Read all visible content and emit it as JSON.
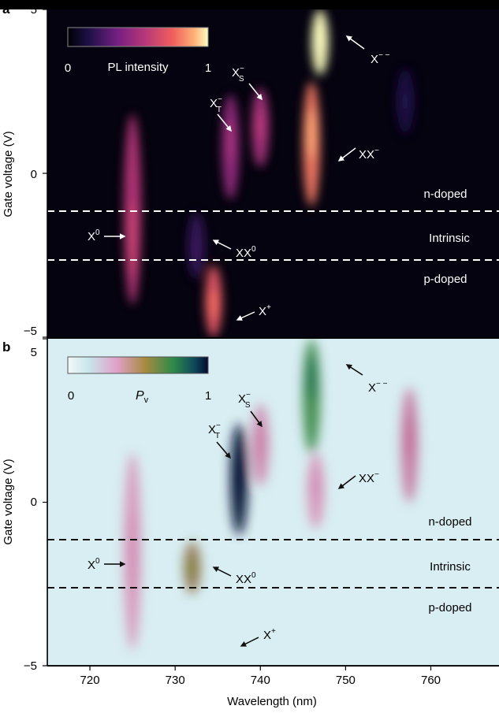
{
  "chart_data": [
    {
      "type": "heatmap",
      "panel_label": "a",
      "ylabel": "Gate voltage (V)",
      "xlabel": "",
      "xlim": [
        715,
        768
      ],
      "ylim": [
        -5,
        5
      ],
      "yticks": [
        "5",
        "0",
        "−5"
      ],
      "colorbar": {
        "label": "PL intensity",
        "min": "0",
        "max": "1",
        "colormap": "magma"
      },
      "regions": [
        {
          "name": "n-doped",
          "boundary_voltage": -1.15
        },
        {
          "name": "Intrinsic"
        },
        {
          "name": "p-doped",
          "boundary_voltage": -2.65
        }
      ],
      "features": [
        {
          "label": "X⁰",
          "wavelength": 725.0,
          "voltage_center": -2.0,
          "voltage_range": [
            -4.0,
            1.8
          ],
          "intensity": 0.55
        },
        {
          "label": "XX⁰",
          "wavelength": 732.5,
          "voltage_center": -2.3,
          "voltage_range": [
            -3.2,
            -1.2
          ],
          "intensity": 0.2
        },
        {
          "label": "X⁺",
          "wavelength": 734.5,
          "voltage_center": -4.0,
          "voltage_range": [
            -5.0,
            -2.8
          ],
          "intensity": 0.7
        },
        {
          "label": "X⁻T",
          "wavelength": 736.5,
          "voltage_center": 1.0,
          "voltage_range": [
            -0.8,
            2.4
          ],
          "intensity": 0.45
        },
        {
          "label": "X⁻S",
          "wavelength": 740.0,
          "voltage_center": 1.5,
          "voltage_range": [
            0.2,
            2.6
          ],
          "intensity": 0.5
        },
        {
          "label": "XX⁻",
          "wavelength": 746.0,
          "voltage_center": 1.2,
          "voltage_range": [
            -1.0,
            2.8
          ],
          "intensity": 0.8
        },
        {
          "label": "X⁻⁻",
          "wavelength": 747.0,
          "voltage_center": 4.2,
          "voltage_range": [
            3.0,
            5.0
          ],
          "intensity": 1.0
        },
        {
          "label": "",
          "wavelength": 757.0,
          "voltage_center": 2.2,
          "voltage_range": [
            1.2,
            3.2
          ],
          "intensity": 0.15
        }
      ],
      "annotations": [
        "X⁻⁻",
        "X⁻S",
        "X⁻T",
        "XX⁻",
        "X⁰",
        "XX⁰",
        "X⁺",
        "n-doped",
        "Intrinsic",
        "p-doped"
      ]
    },
    {
      "type": "heatmap",
      "panel_label": "b",
      "ylabel": "Gate voltage (V)",
      "xlabel": "Wavelength (nm)",
      "xlim": [
        715,
        768
      ],
      "ylim": [
        -5,
        5
      ],
      "xticks": [
        "720",
        "730",
        "740",
        "750",
        "760"
      ],
      "yticks": [
        "5",
        "0",
        "−5"
      ],
      "colorbar": {
        "label": "P",
        "label_subscript": "v",
        "min": "0",
        "max": "1"
      },
      "regions": [
        {
          "name": "n-doped",
          "boundary_voltage": -1.15
        },
        {
          "name": "Intrinsic"
        },
        {
          "name": "p-doped",
          "boundary_voltage": -2.65
        }
      ],
      "features": [
        {
          "label": "X⁰",
          "wavelength": 725.0,
          "voltage_center": -1.5,
          "voltage_range": [
            -4.5,
            1.5
          ],
          "polarization": 0.3
        },
        {
          "label": "XX⁰",
          "wavelength": 732.0,
          "voltage_center": -2.0,
          "voltage_range": [
            -2.8,
            -1.2
          ],
          "polarization": 0.55
        },
        {
          "label": "X⁻T",
          "wavelength": 737.5,
          "voltage_center": 0.8,
          "voltage_range": [
            -1.0,
            2.4
          ],
          "polarization": 1.0
        },
        {
          "label": "X⁻S",
          "wavelength": 740.0,
          "voltage_center": 1.8,
          "voltage_range": [
            0.5,
            3.0
          ],
          "polarization": 0.35
        },
        {
          "label": "X⁻⁻",
          "wavelength": 746.0,
          "voltage_center": 3.8,
          "voltage_range": [
            1.5,
            5.0
          ],
          "polarization": 0.75
        },
        {
          "label": "XX⁻",
          "wavelength": 746.5,
          "voltage_center": 0.5,
          "voltage_range": [
            -0.8,
            1.5
          ],
          "polarization": 0.3
        },
        {
          "label": "",
          "wavelength": 757.5,
          "voltage_center": 2.0,
          "voltage_range": [
            0.0,
            3.5
          ],
          "polarization": 0.4
        }
      ],
      "annotations": [
        "X⁻⁻",
        "X⁻S",
        "X⁻T",
        "XX⁻",
        "X⁰",
        "XX⁰",
        "X⁺",
        "n-doped",
        "Intrinsic",
        "p-doped"
      ]
    }
  ],
  "text": {
    "panel_a": "a",
    "panel_b": "b",
    "ylabel": "Gate voltage (V)",
    "xlabel": "Wavelength (nm)",
    "cbar_a_label": "PL intensity",
    "cbar_b_label_main": "P",
    "cbar_b_label_sub": "v",
    "cbar_min": "0",
    "cbar_max": "1",
    "ytick_top": "5",
    "ytick_mid": "0",
    "ytick_bot": "−5",
    "xticks": [
      "720",
      "730",
      "740",
      "750",
      "760"
    ],
    "n_doped": "n-doped",
    "intrinsic": "Intrinsic",
    "p_doped": "p-doped",
    "lbl_xmm": "X",
    "lbl_xmm_sup": "− −",
    "lbl_xs": "X",
    "lbl_xs_sup": "−",
    "lbl_xs_sub": "S",
    "lbl_xt": "X",
    "lbl_xt_sup": "−",
    "lbl_xt_sub": "T",
    "lbl_xxm": "XX",
    "lbl_xxm_sup": "−",
    "lbl_x0": "X",
    "lbl_x0_sup": "0",
    "lbl_xx0": "XX",
    "lbl_xx0_sup": "0",
    "lbl_xp": "X",
    "lbl_xp_sup": "+"
  }
}
